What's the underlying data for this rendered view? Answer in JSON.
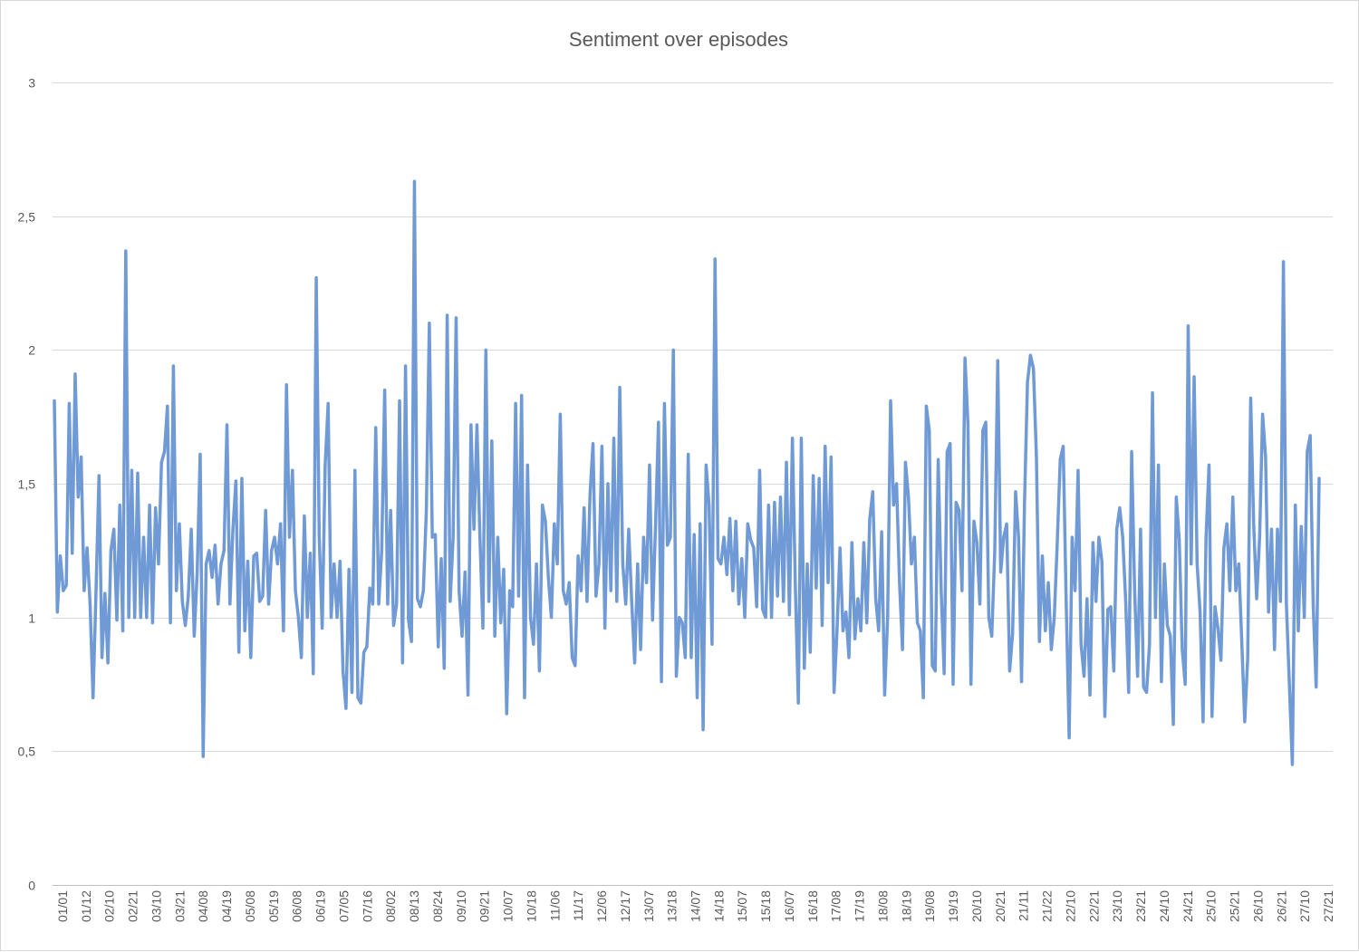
{
  "chart_data": {
    "type": "line",
    "title": "Sentiment over episodes",
    "xlabel": "",
    "ylabel": "",
    "ylim": [
      0,
      3
    ],
    "y_ticks": [
      "0",
      "0,5",
      "1",
      "1,5",
      "2",
      "2,5",
      "3"
    ],
    "y_tick_values": [
      0,
      0.5,
      1,
      1.5,
      2,
      2.5,
      3
    ],
    "grid": true,
    "legend": "none",
    "x_tick_labels": [
      "01/01",
      "01/12",
      "02/10",
      "02/21",
      "03/10",
      "03/21",
      "04/08",
      "04/19",
      "05/08",
      "05/19",
      "06/08",
      "06/19",
      "07/05",
      "07/16",
      "08/02",
      "08/13",
      "08/24",
      "09/10",
      "09/21",
      "10/07",
      "10/18",
      "11/06",
      "11/17",
      "12/06",
      "12/17",
      "13/07",
      "13/18",
      "14/07",
      "14/18",
      "15/07",
      "15/18",
      "16/07",
      "16/18",
      "17/08",
      "17/19",
      "18/08",
      "18/19",
      "19/08",
      "19/19",
      "20/10",
      "20/21",
      "21/11",
      "21/22",
      "22/10",
      "22/21",
      "23/10",
      "23/21",
      "24/10",
      "24/21",
      "25/10",
      "25/21",
      "26/10",
      "26/21",
      "27/10",
      "27/21"
    ],
    "series": [
      {
        "color": "#6f9ad6",
        "values": [
          1.81,
          1.02,
          1.23,
          1.1,
          1.12,
          1.8,
          1.24,
          1.91,
          1.45,
          1.6,
          1.1,
          1.26,
          1.05,
          0.7,
          1.1,
          1.53,
          0.85,
          1.09,
          0.83,
          1.25,
          1.33,
          0.99,
          1.42,
          0.95,
          2.37,
          1.0,
          1.55,
          1.0,
          1.54,
          1.0,
          1.3,
          1.0,
          1.42,
          0.98,
          1.41,
          1.2,
          1.58,
          1.62,
          1.79,
          0.98,
          1.94,
          1.1,
          1.35,
          1.06,
          0.97,
          1.08,
          1.33,
          0.93,
          1.17,
          1.61,
          0.48,
          1.2,
          1.25,
          1.15,
          1.27,
          1.05,
          1.2,
          1.25,
          1.72,
          1.05,
          1.33,
          1.51,
          0.87,
          1.52,
          0.95,
          1.21,
          0.85,
          1.23,
          1.24,
          1.06,
          1.08,
          1.4,
          1.05,
          1.25,
          1.3,
          1.2,
          1.35,
          0.95,
          1.87,
          1.3,
          1.55,
          1.1,
          1.0,
          0.85,
          1.38,
          1.0,
          1.24,
          0.79,
          2.27,
          1.3,
          0.96,
          1.57,
          1.8,
          1.0,
          1.2,
          1.0,
          1.21,
          0.8,
          0.66,
          1.18,
          0.72,
          1.55,
          0.7,
          0.68,
          0.87,
          0.89,
          1.11,
          1.05,
          1.71,
          1.05,
          1.25,
          1.85,
          1.05,
          1.4,
          0.97,
          1.05,
          1.81,
          0.83,
          1.94,
          0.99,
          0.91,
          2.63,
          1.07,
          1.04,
          1.1,
          1.4,
          2.1,
          1.3,
          1.31,
          0.89,
          1.22,
          0.81,
          2.13,
          1.06,
          1.3,
          2.12,
          1.1,
          0.93,
          1.17,
          0.71,
          1.72,
          1.33,
          1.72,
          1.3,
          0.96,
          2.0,
          1.06,
          1.66,
          0.93,
          1.3,
          0.98,
          1.18,
          0.64,
          1.1,
          1.04,
          1.8,
          1.08,
          1.83,
          0.7,
          1.57,
          1.0,
          0.9,
          1.2,
          0.8,
          1.42,
          1.36,
          1.15,
          1.0,
          1.35,
          1.2,
          1.76,
          1.1,
          1.05,
          1.13,
          0.85,
          0.82,
          1.23,
          1.1,
          1.41,
          1.06,
          1.46,
          1.65,
          1.08,
          1.2,
          1.64,
          0.96,
          1.5,
          1.1,
          1.67,
          1.06,
          1.86,
          1.2,
          1.05,
          1.33,
          1.06,
          0.83,
          1.2,
          0.88,
          1.3,
          1.13,
          1.57,
          0.99,
          1.34,
          1.73,
          0.76,
          1.8,
          1.27,
          1.3,
          2.0,
          0.78,
          1.0,
          0.98,
          0.85,
          1.61,
          0.85,
          1.31,
          0.7,
          1.35,
          0.58,
          1.57,
          1.42,
          0.9,
          2.34,
          1.22,
          1.2,
          1.3,
          1.16,
          1.37,
          1.1,
          1.36,
          1.05,
          1.22,
          1.0,
          1.35,
          1.29,
          1.26,
          1.04,
          1.55,
          1.03,
          1.0,
          1.42,
          1.0,
          1.43,
          1.08,
          1.45,
          1.06,
          1.58,
          1.01,
          1.67,
          1.11,
          0.68,
          1.67,
          0.81,
          1.2,
          0.87,
          1.53,
          1.11,
          1.52,
          0.97,
          1.64,
          1.13,
          1.6,
          0.72,
          0.95,
          1.26,
          0.95,
          1.02,
          0.85,
          1.28,
          0.92,
          1.07,
          0.95,
          1.28,
          0.98,
          1.37,
          1.47,
          1.07,
          0.95,
          1.32,
          0.71,
          1.0,
          1.81,
          1.42,
          1.5,
          1.13,
          0.88,
          1.58,
          1.45,
          1.2,
          1.3,
          0.98,
          0.95,
          0.7,
          1.79,
          1.7,
          0.82,
          0.8,
          1.59,
          1.1,
          0.79,
          1.62,
          1.65,
          0.75,
          1.43,
          1.4,
          1.1,
          1.97,
          1.72,
          0.75,
          1.36,
          1.28,
          1.05,
          1.7,
          1.73,
          1.0,
          0.93,
          1.25,
          1.96,
          1.17,
          1.3,
          1.35,
          0.8,
          0.94,
          1.47,
          1.3,
          0.76,
          1.43,
          1.88,
          1.98,
          1.93,
          1.6,
          0.91,
          1.23,
          0.95,
          1.13,
          0.88,
          1.0,
          1.28,
          1.59,
          1.64,
          1.06,
          0.55,
          1.3,
          1.1,
          1.55,
          0.9,
          0.78,
          1.07,
          0.71,
          1.28,
          1.06,
          1.3,
          1.21,
          0.63,
          1.03,
          1.04,
          0.8,
          1.33,
          1.41,
          1.3,
          1.06,
          0.72,
          1.62,
          1.1,
          0.78,
          1.33,
          0.74,
          0.72,
          0.9,
          1.84,
          1.0,
          1.57,
          0.76,
          1.2,
          0.97,
          0.93,
          0.6,
          1.45,
          1.29,
          0.88,
          0.75,
          2.09,
          1.2,
          1.9,
          1.2,
          1.02,
          0.61,
          1.3,
          1.57,
          0.63,
          1.04,
          0.96,
          0.84,
          1.26,
          1.35,
          1.1,
          1.45,
          1.1,
          1.2,
          0.91,
          0.61,
          0.85,
          1.82,
          1.35,
          1.07,
          1.3,
          1.76,
          1.6,
          1.02,
          1.33,
          0.88,
          1.33,
          1.06,
          2.33,
          1.05,
          0.75,
          0.45,
          1.42,
          0.95,
          1.34,
          1.0,
          1.62,
          1.68,
          1.05,
          0.74,
          1.52
        ]
      }
    ]
  }
}
